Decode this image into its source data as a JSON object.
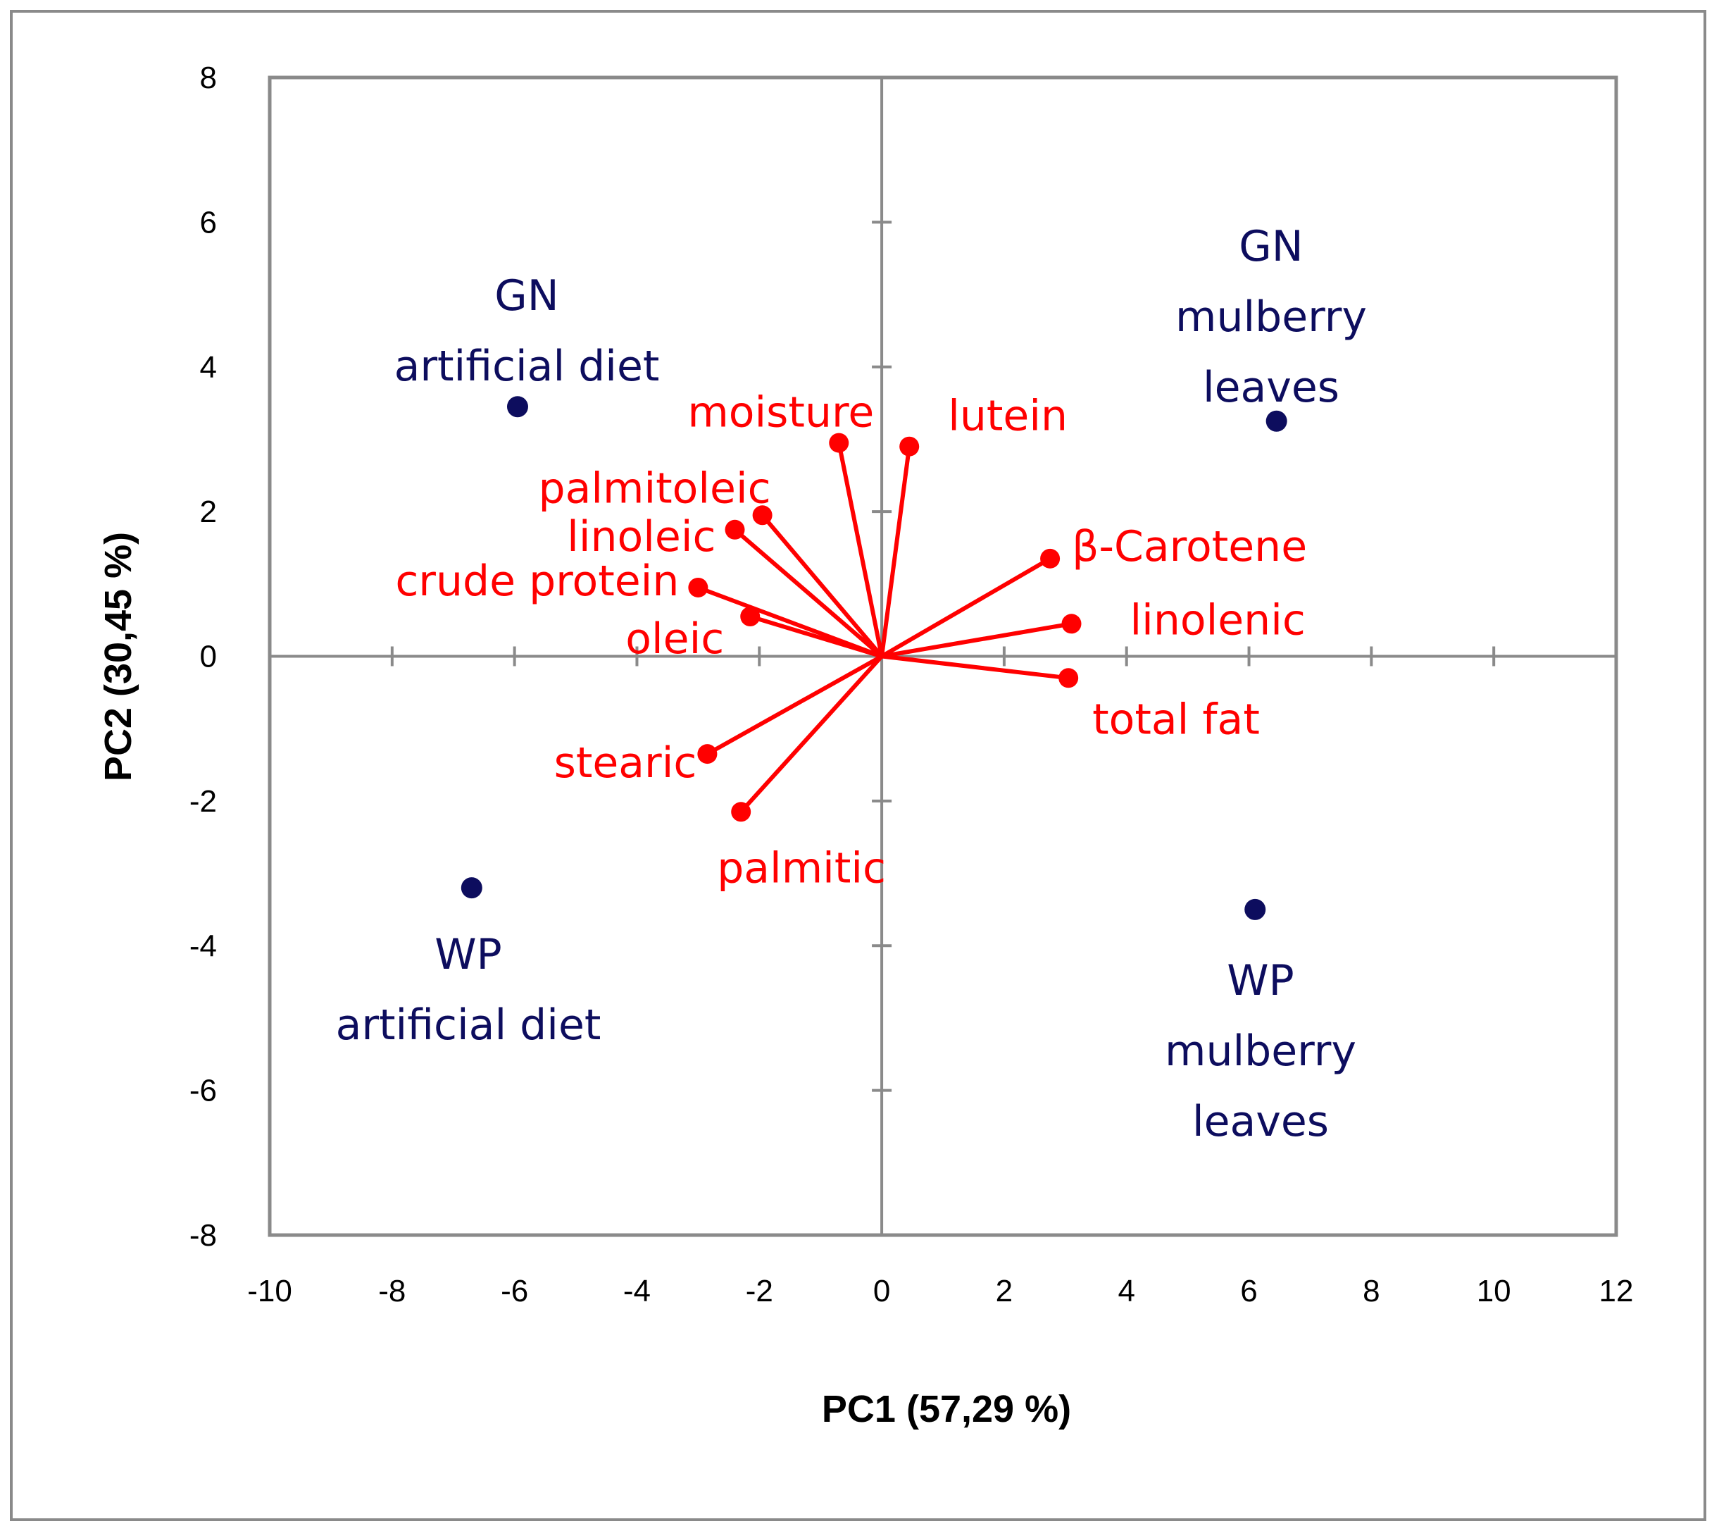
{
  "chart_data": {
    "type": "scatter",
    "subtype": "PCA biplot",
    "xlabel": "PC1 (57,29 %)",
    "ylabel": "PC2 (30,45 %)",
    "xlim": [
      -10,
      12
    ],
    "ylim": [
      -8,
      8
    ],
    "x_ticks": [
      -10,
      -8,
      -6,
      -4,
      -2,
      0,
      2,
      4,
      6,
      8,
      10,
      12
    ],
    "y_ticks": [
      -8,
      -6,
      -4,
      -2,
      0,
      2,
      4,
      6,
      8
    ],
    "colors": {
      "scores": "#0d0d5e",
      "loadings": "#ff0000",
      "axes": "#8a8a8a"
    },
    "series": [
      {
        "name": "scores",
        "color": "#0d0d5e",
        "points": [
          {
            "lines": [
              "GN",
              "artificial diet"
            ],
            "x": -5.95,
            "y": 3.45
          },
          {
            "lines": [
              "GN",
              "mulberry",
              "leaves"
            ],
            "x": 6.45,
            "y": 3.25
          },
          {
            "lines": [
              "WP",
              "artificial diet"
            ],
            "x": -6.7,
            "y": -3.2
          },
          {
            "lines": [
              "WP",
              "mulberry",
              "leaves"
            ],
            "x": 6.1,
            "y": -3.5
          }
        ]
      },
      {
        "name": "loadings",
        "color": "#ff0000",
        "points": [
          {
            "label": "moisture",
            "x": -0.7,
            "y": 2.95
          },
          {
            "label": "lutein",
            "x": 0.45,
            "y": 2.9
          },
          {
            "label": "palmitoleic",
            "x": -1.95,
            "y": 1.95
          },
          {
            "label": "linoleic",
            "x": -2.4,
            "y": 1.75
          },
          {
            "label": "β-Carotene",
            "x": 2.75,
            "y": 1.35
          },
          {
            "label": "crude protein",
            "x": -3.0,
            "y": 0.95
          },
          {
            "label": "oleic",
            "x": -2.15,
            "y": 0.55
          },
          {
            "label": "linolenic",
            "x": 3.1,
            "y": 0.45
          },
          {
            "label": "total fat",
            "x": 3.05,
            "y": -0.3
          },
          {
            "label": "stearic",
            "x": -2.85,
            "y": -1.35
          },
          {
            "label": "palmitic",
            "x": -2.3,
            "y": -2.15
          }
        ]
      }
    ]
  }
}
